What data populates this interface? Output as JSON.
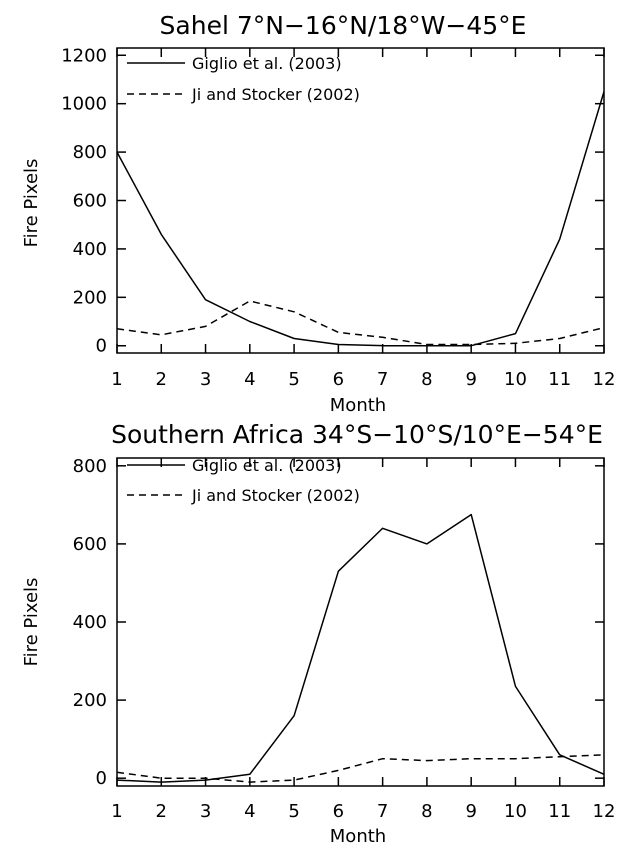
{
  "chart_data": [
    {
      "type": "line",
      "title": "Sahel 7°N−16°N/18°W−45°E",
      "xlabel": "Month",
      "ylabel": "Fire Pixels",
      "x": [
        1,
        2,
        3,
        4,
        5,
        6,
        7,
        8,
        9,
        10,
        11,
        12
      ],
      "xlim": [
        1,
        12
      ],
      "ylim": [
        -30,
        1230
      ],
      "yticks": [
        0,
        200,
        400,
        600,
        800,
        1000,
        1200
      ],
      "grid": false,
      "legend_position": "top-left",
      "series": [
        {
          "name": "Giglio et al. (2003)",
          "style": "solid",
          "color": "#000000",
          "values": [
            800,
            460,
            190,
            100,
            30,
            5,
            0,
            0,
            0,
            50,
            440,
            1050
          ]
        },
        {
          "name": "Ji and Stocker (2002)",
          "style": "dashed",
          "color": "#000000",
          "values": [
            70,
            45,
            80,
            185,
            140,
            55,
            35,
            5,
            5,
            10,
            30,
            75
          ]
        }
      ]
    },
    {
      "type": "line",
      "title": "Southern Africa 34°S−10°S/10°E−54°E",
      "xlabel": "Month",
      "ylabel": "Fire Pixels",
      "x": [
        1,
        2,
        3,
        4,
        5,
        6,
        7,
        8,
        9,
        10,
        11,
        12
      ],
      "xlim": [
        1,
        12
      ],
      "ylim": [
        -20,
        820
      ],
      "yticks": [
        0,
        200,
        400,
        600,
        800
      ],
      "grid": false,
      "legend_position": "top-left",
      "series": [
        {
          "name": "Giglio et al. (2003)",
          "style": "solid",
          "color": "#000000",
          "values": [
            -5,
            -10,
            -5,
            10,
            160,
            530,
            640,
            600,
            675,
            235,
            60,
            10
          ]
        },
        {
          "name": "Ji and Stocker (2002)",
          "style": "dashed",
          "color": "#000000",
          "values": [
            15,
            0,
            0,
            -10,
            -5,
            20,
            50,
            45,
            50,
            50,
            55,
            60
          ]
        }
      ]
    }
  ]
}
